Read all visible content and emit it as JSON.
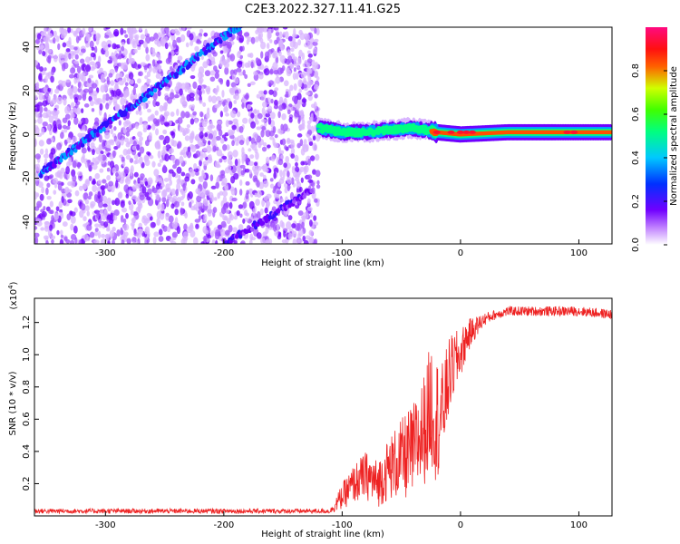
{
  "title": "C2E3.2022.327.11.41.G25",
  "colors": {
    "snr_line": "#ee2222",
    "spectrum_low": "#8a2be2",
    "colormap": [
      "#ffffff",
      "#a000ff",
      "#4000ff",
      "#00e0ff",
      "#00ff40",
      "#c0ff00",
      "#ff2020",
      "#ff1060"
    ]
  },
  "chart_data": [
    {
      "type": "heatmap",
      "xlabel": "Height of straight line (km)",
      "ylabel": "Frequency (Hz)",
      "xlim": [
        -360,
        128
      ],
      "ylim": [
        -50,
        49
      ],
      "xticks": [
        -300,
        -200,
        -100,
        0,
        100
      ],
      "xtick_labels": [
        "-300",
        "-200",
        "-100",
        "0",
        "100"
      ],
      "yticks": [
        -40,
        -20,
        0,
        20,
        40
      ],
      "ytick_labels": [
        "-40",
        "-20",
        "0",
        "20",
        "40"
      ],
      "grid": false,
      "colorbar": {
        "label": "Normalized spectral amplitude",
        "range": [
          0,
          1
        ],
        "ticks": [
          0.0,
          0.2,
          0.4,
          0.6,
          0.8
        ],
        "tick_labels": [
          "0.0",
          "0.2",
          "0.4",
          "0.6",
          "0.8"
        ]
      },
      "features": [
        {
          "name": "",
          "kind": "noise-region",
          "x_range": [
            -360,
            -120
          ],
          "y_range": [
            -50,
            49
          ]
        },
        {
          "name": "",
          "kind": "ridge",
          "x": [
            -355,
            -320,
            -280,
            -240,
            -200,
            -180
          ],
          "y": [
            -18,
            -4,
            12,
            28,
            45,
            52
          ]
        },
        {
          "name": "",
          "kind": "ridge",
          "x": [
            -200,
            -160,
            -125
          ],
          "y": [
            -50,
            -37,
            -25
          ]
        },
        {
          "name": "",
          "kind": "ridge",
          "x": [
            -120,
            -100,
            -80,
            -60,
            -40,
            -20,
            0,
            40,
            80,
            128
          ],
          "y": [
            3,
            1,
            1,
            2,
            3,
            1,
            0,
            1,
            1,
            1
          ]
        }
      ]
    },
    {
      "type": "line",
      "xlabel": "Height of straight line (km)",
      "ylabel": "SNR (10 * v/v)",
      "y_multiplier": "(x10",
      "y_multiplier_exp": "4",
      "y_multiplier_close": ")",
      "xlim": [
        -360,
        128
      ],
      "ylim": [
        0,
        1.35
      ],
      "xticks": [
        -300,
        -200,
        -100,
        0,
        100
      ],
      "xtick_labels": [
        "-300",
        "-200",
        "-100",
        "0",
        "100"
      ],
      "yticks": [
        0.2,
        0.4,
        0.6,
        0.8,
        1.0,
        1.2
      ],
      "ytick_labels": [
        "0.2",
        "0.4",
        "0.6",
        "0.8",
        "1.0",
        "1.2"
      ],
      "grid": false,
      "series": [
        {
          "name": "",
          "x": [
            -360,
            -300,
            -250,
            -200,
            -150,
            -110,
            -100,
            -90,
            -80,
            -70,
            -60,
            -50,
            -40,
            -30,
            -25,
            -20,
            -15,
            -10,
            -5,
            0,
            5,
            10,
            20,
            30,
            40,
            60,
            80,
            100,
            128
          ],
          "y": [
            0.03,
            0.03,
            0.03,
            0.03,
            0.03,
            0.03,
            0.12,
            0.2,
            0.25,
            0.2,
            0.3,
            0.35,
            0.4,
            0.55,
            0.7,
            0.6,
            0.65,
            0.85,
            0.95,
            1.0,
            1.1,
            1.15,
            1.22,
            1.25,
            1.27,
            1.27,
            1.27,
            1.27,
            1.25
          ],
          "spread": [
            0.015,
            0.015,
            0.015,
            0.015,
            0.015,
            0.015,
            0.08,
            0.12,
            0.15,
            0.15,
            0.2,
            0.25,
            0.3,
            0.35,
            0.4,
            0.4,
            0.3,
            0.25,
            0.2,
            0.15,
            0.12,
            0.08,
            0.04,
            0.03,
            0.03,
            0.03,
            0.03,
            0.03,
            0.03
          ]
        }
      ]
    }
  ]
}
